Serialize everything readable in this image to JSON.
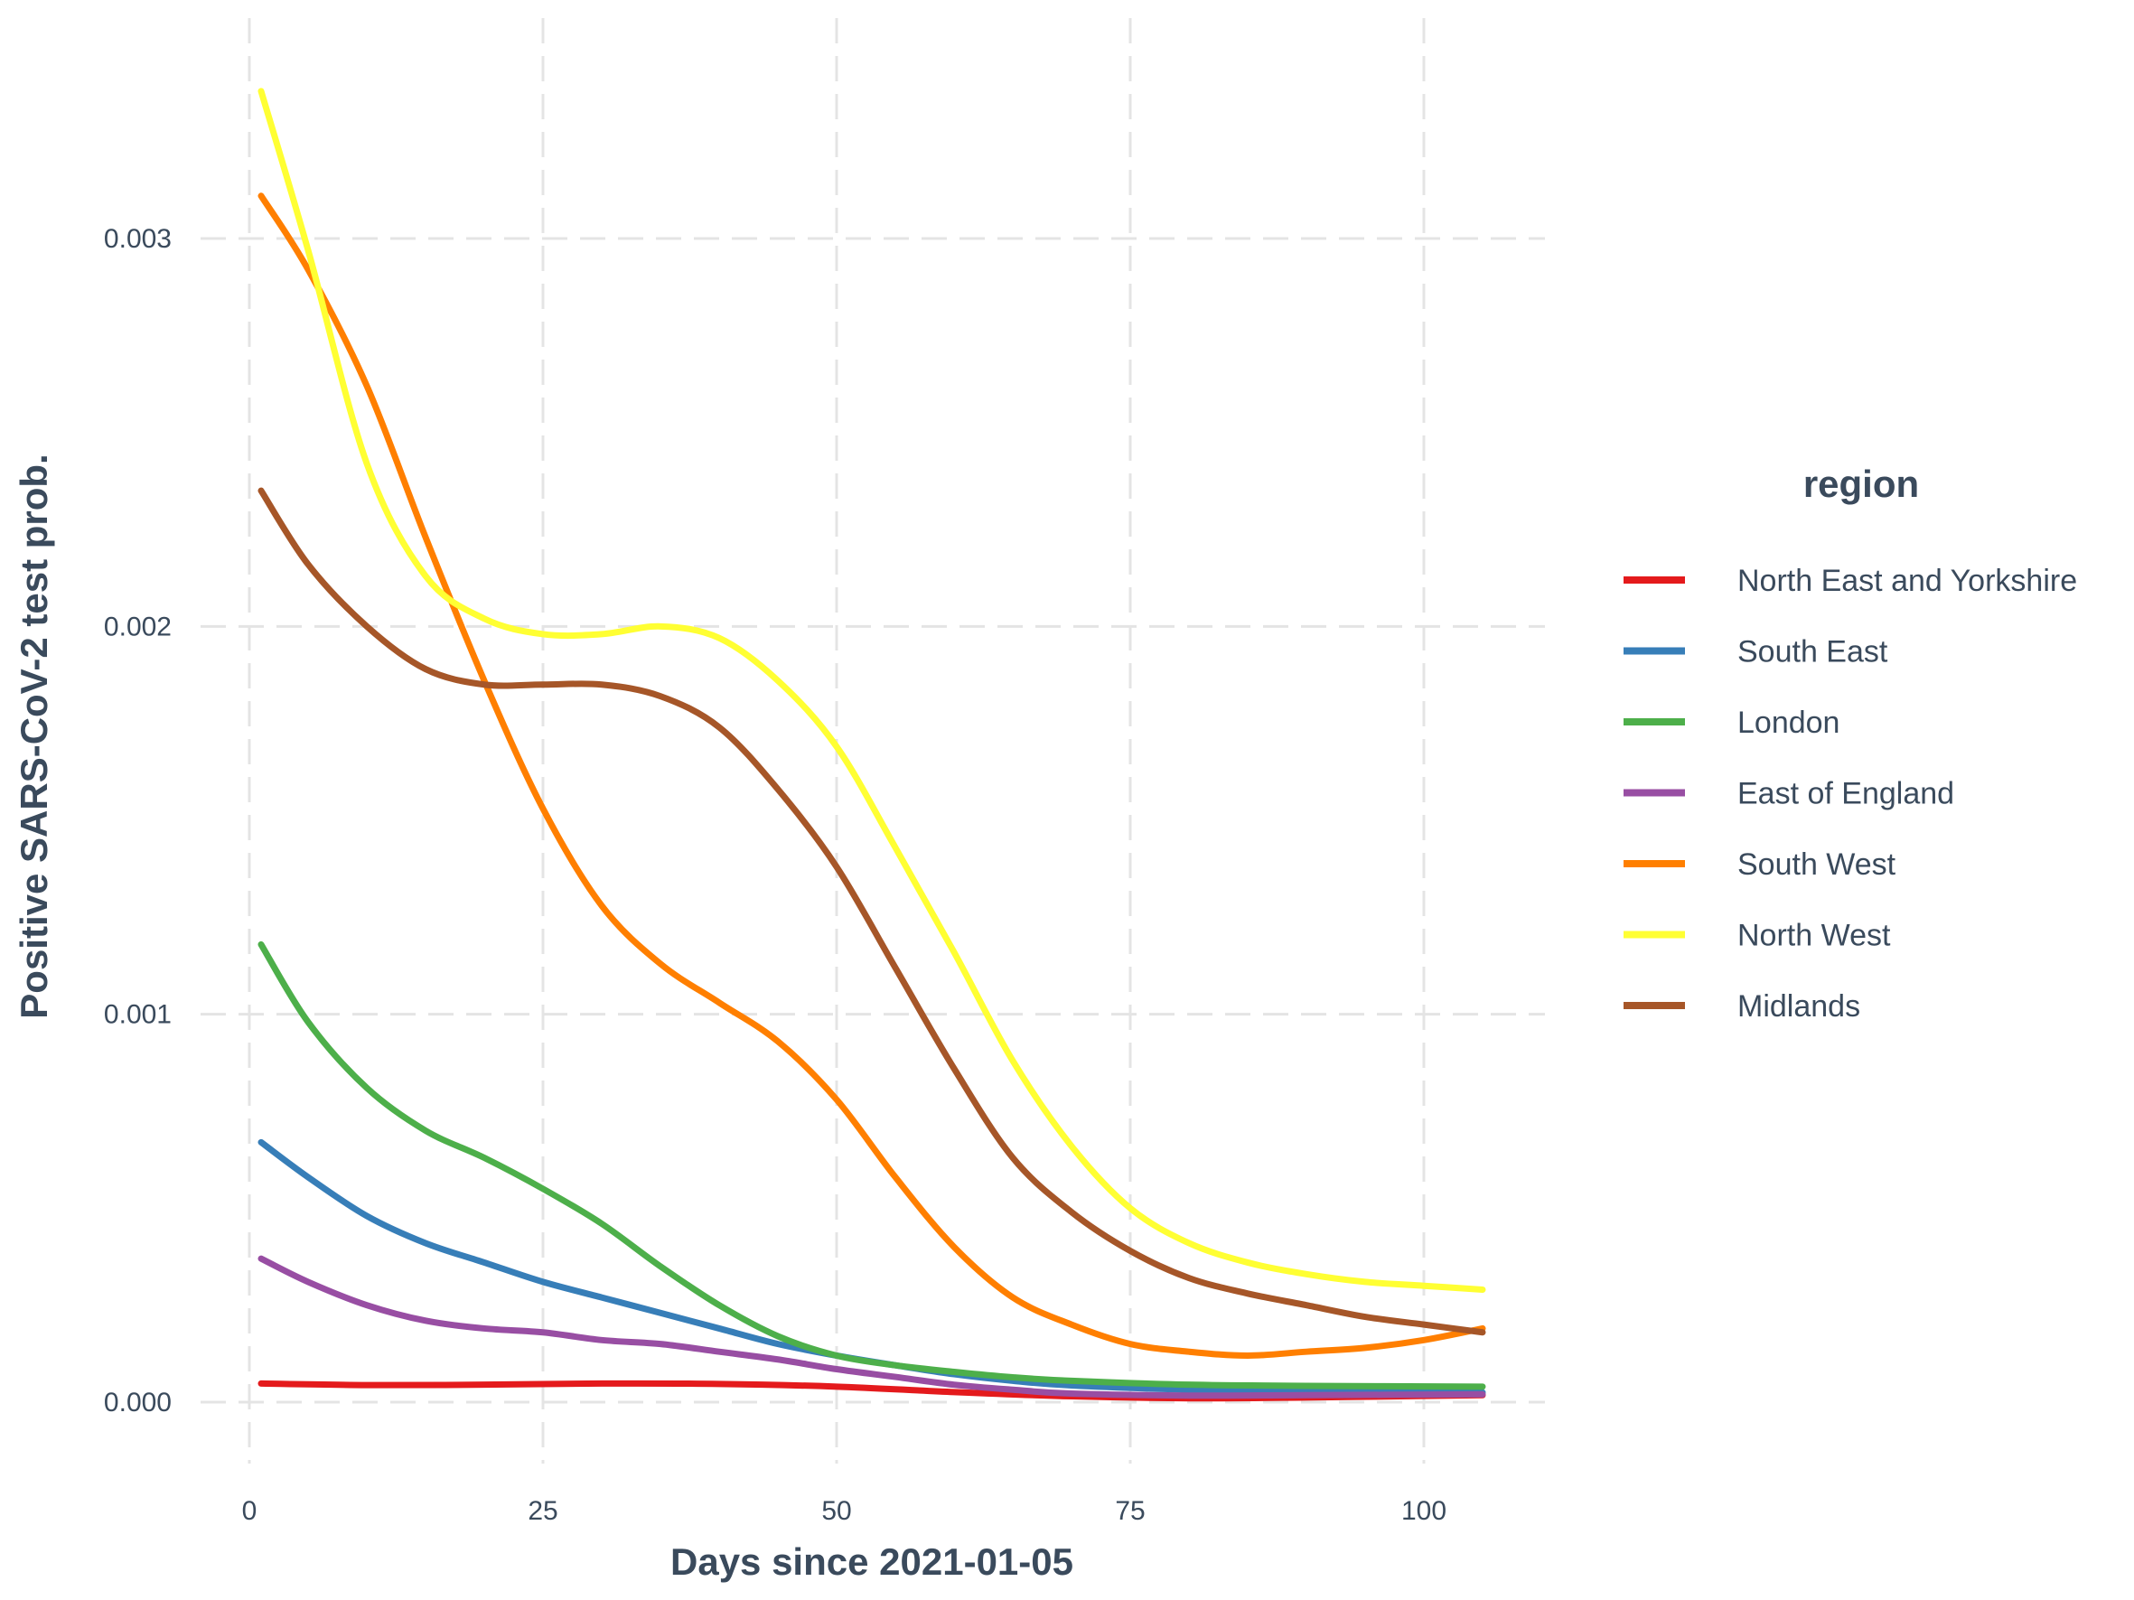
{
  "chart_data": {
    "type": "line",
    "xlabel": "Days since 2021-01-05",
    "ylabel": "Positive SARS-CoV-2 test prob.",
    "xlim": [
      -3,
      110
    ],
    "ylim": [
      -0.00015,
      0.0035
    ],
    "x_ticks": [
      0,
      25,
      50,
      75,
      100
    ],
    "x_tick_labels": [
      "0",
      "25",
      "50",
      "75",
      "100"
    ],
    "y_ticks": [
      0,
      0.001,
      0.002,
      0.003
    ],
    "y_tick_labels": [
      "0.000",
      "0.001",
      "0.002",
      "0.003"
    ],
    "grid": true,
    "legend": {
      "title": "region",
      "position": "right"
    },
    "series": [
      {
        "name": "North East and Yorkshire",
        "color": "#e41a1c",
        "points": [
          [
            1,
            4.8e-05
          ],
          [
            10,
            4.4e-05
          ],
          [
            20,
            4.5e-05
          ],
          [
            30,
            4.8e-05
          ],
          [
            40,
            4.7e-05
          ],
          [
            50,
            4e-05
          ],
          [
            60,
            2.6e-05
          ],
          [
            70,
            1.5e-05
          ],
          [
            80,
            1e-05
          ],
          [
            90,
            1.2e-05
          ],
          [
            100,
            1.6e-05
          ],
          [
            105,
            1.8e-05
          ]
        ]
      },
      {
        "name": "South East",
        "color": "#377eb8",
        "points": [
          [
            1,
            0.00067
          ],
          [
            5,
            0.00058
          ],
          [
            10,
            0.00048
          ],
          [
            15,
            0.00041
          ],
          [
            20,
            0.00036
          ],
          [
            25,
            0.00031
          ],
          [
            30,
            0.00027
          ],
          [
            35,
            0.00023
          ],
          [
            40,
            0.00019
          ],
          [
            45,
            0.00015
          ],
          [
            50,
            0.00012
          ],
          [
            55,
            9.5e-05
          ],
          [
            60,
            7.2e-05
          ],
          [
            65,
            5.5e-05
          ],
          [
            70,
            4.3e-05
          ],
          [
            80,
            3.2e-05
          ],
          [
            90,
            2.7e-05
          ],
          [
            105,
            2.5e-05
          ]
        ]
      },
      {
        "name": "London",
        "color": "#4daf4a",
        "points": [
          [
            1,
            0.00118
          ],
          [
            5,
            0.00098
          ],
          [
            10,
            0.00081
          ],
          [
            15,
            0.0007
          ],
          [
            20,
            0.00063
          ],
          [
            25,
            0.00055
          ],
          [
            30,
            0.00046
          ],
          [
            35,
            0.00035
          ],
          [
            40,
            0.00025
          ],
          [
            45,
            0.00017
          ],
          [
            50,
            0.00012
          ],
          [
            55,
            9.5e-05
          ],
          [
            60,
            7.8e-05
          ],
          [
            65,
            6.4e-05
          ],
          [
            70,
            5.5e-05
          ],
          [
            80,
            4.5e-05
          ],
          [
            90,
            4.2e-05
          ],
          [
            105,
            4e-05
          ]
        ]
      },
      {
        "name": "East of England",
        "color": "#984ea3",
        "points": [
          [
            1,
            0.00037
          ],
          [
            5,
            0.00031
          ],
          [
            10,
            0.00025
          ],
          [
            15,
            0.00021
          ],
          [
            20,
            0.00019
          ],
          [
            25,
            0.00018
          ],
          [
            30,
            0.00016
          ],
          [
            35,
            0.00015
          ],
          [
            40,
            0.00013
          ],
          [
            45,
            0.00011
          ],
          [
            50,
            8.5e-05
          ],
          [
            55,
            6.5e-05
          ],
          [
            60,
            4.5e-05
          ],
          [
            65,
            3.2e-05
          ],
          [
            70,
            2.2e-05
          ],
          [
            80,
            1.7e-05
          ],
          [
            90,
            1.8e-05
          ],
          [
            105,
            2e-05
          ]
        ]
      },
      {
        "name": "South West",
        "color": "#ff7f00",
        "points": [
          [
            1,
            0.00311
          ],
          [
            5,
            0.00292
          ],
          [
            10,
            0.00262
          ],
          [
            15,
            0.00223
          ],
          [
            20,
            0.00186
          ],
          [
            25,
            0.00153
          ],
          [
            30,
            0.00128
          ],
          [
            35,
            0.00113
          ],
          [
            40,
            0.00103
          ],
          [
            45,
            0.00093
          ],
          [
            50,
            0.00078
          ],
          [
            55,
            0.00058
          ],
          [
            60,
            0.0004
          ],
          [
            65,
            0.00027
          ],
          [
            70,
            0.0002
          ],
          [
            75,
            0.00015
          ],
          [
            80,
            0.00013
          ],
          [
            85,
            0.00012
          ],
          [
            90,
            0.00013
          ],
          [
            95,
            0.00014
          ],
          [
            100,
            0.00016
          ],
          [
            105,
            0.00019
          ]
        ]
      },
      {
        "name": "North West",
        "color": "#ffff33",
        "points": [
          [
            1,
            0.00338
          ],
          [
            5,
            0.00297
          ],
          [
            10,
            0.00242
          ],
          [
            15,
            0.00213
          ],
          [
            20,
            0.00202
          ],
          [
            25,
            0.00198
          ],
          [
            30,
            0.00198
          ],
          [
            35,
            0.002
          ],
          [
            40,
            0.00197
          ],
          [
            45,
            0.00186
          ],
          [
            50,
            0.00169
          ],
          [
            55,
            0.00143
          ],
          [
            60,
            0.00116
          ],
          [
            65,
            0.00088
          ],
          [
            70,
            0.00066
          ],
          [
            75,
            0.0005
          ],
          [
            80,
            0.00041
          ],
          [
            85,
            0.00036
          ],
          [
            90,
            0.00033
          ],
          [
            95,
            0.00031
          ],
          [
            100,
            0.0003
          ],
          [
            105,
            0.00029
          ]
        ]
      },
      {
        "name": "Midlands",
        "color": "#a65628",
        "points": [
          [
            1,
            0.00235
          ],
          [
            5,
            0.00216
          ],
          [
            10,
            0.002
          ],
          [
            15,
            0.00189
          ],
          [
            20,
            0.00185
          ],
          [
            25,
            0.00185
          ],
          [
            30,
            0.00185
          ],
          [
            35,
            0.00182
          ],
          [
            40,
            0.00174
          ],
          [
            45,
            0.00158
          ],
          [
            50,
            0.00138
          ],
          [
            55,
            0.00112
          ],
          [
            60,
            0.00086
          ],
          [
            65,
            0.00063
          ],
          [
            70,
            0.00049
          ],
          [
            75,
            0.00039
          ],
          [
            80,
            0.00032
          ],
          [
            85,
            0.00028
          ],
          [
            90,
            0.00025
          ],
          [
            95,
            0.00022
          ],
          [
            100,
            0.0002
          ],
          [
            105,
            0.00018
          ]
        ]
      }
    ]
  }
}
